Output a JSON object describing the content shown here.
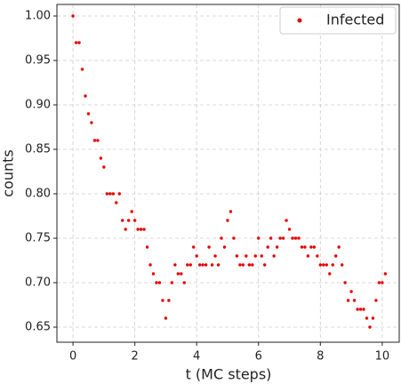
{
  "chart_data": {
    "type": "scatter",
    "xlabel": "t (MC steps)",
    "ylabel": "counts",
    "xlim": [
      -0.52,
      10.55
    ],
    "ylim": [
      0.633,
      1.013
    ],
    "xticks": [
      0,
      2,
      4,
      6,
      8,
      10
    ],
    "yticks": [
      {
        "value": 0.65,
        "label": "0.65"
      },
      {
        "value": 0.7,
        "label": "0.70"
      },
      {
        "value": 0.75,
        "label": "0.75"
      },
      {
        "value": 0.8,
        "label": "0.80"
      },
      {
        "value": 0.85,
        "label": "0.85"
      },
      {
        "value": 0.9,
        "label": "0.90"
      },
      {
        "value": 0.95,
        "label": "0.95"
      },
      {
        "value": 1.0,
        "label": "1.00"
      }
    ],
    "grid": true,
    "legend": "upper right",
    "series": [
      {
        "name": "Infected",
        "color": "#e50000",
        "x": [
          0,
          0.1,
          0.2,
          0.3,
          0.4,
          0.5,
          0.6,
          0.7,
          0.8,
          0.9,
          1.0,
          1.1,
          1.2,
          1.3,
          1.4,
          1.5,
          1.6,
          1.7,
          1.8,
          1.9,
          2.0,
          2.1,
          2.2,
          2.3,
          2.4,
          2.5,
          2.6,
          2.7,
          2.8,
          2.9,
          3.0,
          3.1,
          3.2,
          3.3,
          3.4,
          3.5,
          3.6,
          3.7,
          3.8,
          3.9,
          4.0,
          4.1,
          4.2,
          4.3,
          4.4,
          4.5,
          4.6,
          4.7,
          4.8,
          4.9,
          5.0,
          5.1,
          5.2,
          5.3,
          5.4,
          5.5,
          5.6,
          5.7,
          5.8,
          5.9,
          6.0,
          6.1,
          6.2,
          6.3,
          6.4,
          6.5,
          6.6,
          6.7,
          6.8,
          6.9,
          7.0,
          7.1,
          7.2,
          7.3,
          7.4,
          7.5,
          7.6,
          7.7,
          7.8,
          7.9,
          8.0,
          8.1,
          8.2,
          8.3,
          8.4,
          8.5,
          8.6,
          8.7,
          8.8,
          8.9,
          9.0,
          9.1,
          9.2,
          9.3,
          9.4,
          9.5,
          9.6,
          9.7,
          9.8,
          9.9,
          10.0,
          10.1
        ],
        "values": [
          1.0,
          0.97,
          0.97,
          0.94,
          0.91,
          0.89,
          0.88,
          0.86,
          0.86,
          0.84,
          0.83,
          0.8,
          0.8,
          0.8,
          0.79,
          0.8,
          0.77,
          0.76,
          0.77,
          0.78,
          0.77,
          0.76,
          0.76,
          0.76,
          0.74,
          0.72,
          0.71,
          0.7,
          0.7,
          0.68,
          0.66,
          0.68,
          0.7,
          0.72,
          0.71,
          0.71,
          0.7,
          0.72,
          0.72,
          0.74,
          0.73,
          0.72,
          0.72,
          0.72,
          0.74,
          0.72,
          0.73,
          0.72,
          0.75,
          0.74,
          0.77,
          0.78,
          0.75,
          0.73,
          0.72,
          0.72,
          0.73,
          0.72,
          0.72,
          0.73,
          0.75,
          0.73,
          0.72,
          0.74,
          0.75,
          0.73,
          0.74,
          0.75,
          0.75,
          0.77,
          0.76,
          0.75,
          0.75,
          0.75,
          0.74,
          0.74,
          0.73,
          0.74,
          0.74,
          0.73,
          0.72,
          0.72,
          0.72,
          0.71,
          0.72,
          0.73,
          0.74,
          0.72,
          0.7,
          0.68,
          0.69,
          0.68,
          0.67,
          0.67,
          0.67,
          0.66,
          0.65,
          0.66,
          0.68,
          0.7,
          0.7,
          0.71
        ]
      }
    ]
  }
}
